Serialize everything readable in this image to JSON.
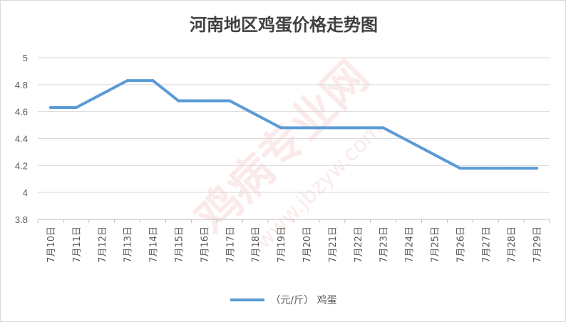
{
  "chart_data": {
    "type": "line",
    "title": "河南地区鸡蛋价格走势图",
    "xlabel": "",
    "ylabel": "",
    "ylim": [
      3.8,
      5
    ],
    "yticks": [
      "3.8",
      "4",
      "4.2",
      "4.4",
      "4.6",
      "4.8",
      "5"
    ],
    "grid": true,
    "legend_position": "bottom",
    "categories": [
      "7月10日",
      "7月11日",
      "7月12日",
      "7月13日",
      "7月14日",
      "7月15日",
      "7月16日",
      "7月17日",
      "7月18日",
      "7月19日",
      "7月20日",
      "7月21日",
      "7月22日",
      "7月23日",
      "7月24日",
      "7月25日",
      "7月26日",
      "7月27日",
      "7月28日",
      "7月29日"
    ],
    "series": [
      {
        "name": "（元/斤） 鸡蛋",
        "color": "#5b9bd5",
        "values": [
          4.63,
          4.63,
          4.73,
          4.83,
          4.83,
          4.68,
          4.68,
          4.68,
          4.58,
          4.48,
          4.48,
          4.48,
          4.48,
          4.48,
          4.38,
          4.28,
          4.18,
          4.18,
          4.18,
          4.18
        ]
      }
    ]
  },
  "watermark": {
    "text_cn": "鸡病专业网",
    "text_url": "www.jbzyw.com"
  }
}
